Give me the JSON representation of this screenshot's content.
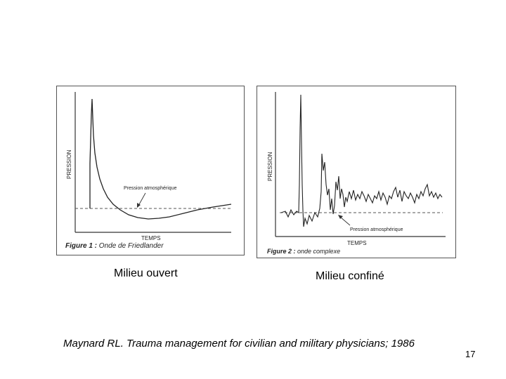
{
  "figures": [
    {
      "id": "fig1",
      "y_axis_label": "PRESSION",
      "x_axis_label": "TEMPS",
      "annotation": "Pression atmosphérique",
      "caption_prefix": "Figure 1 :",
      "caption_text": "Onde de Friedlander",
      "label_below": "Milieu ouvert"
    },
    {
      "id": "fig2",
      "y_axis_label": "PRESSION",
      "x_axis_label": "TEMPS",
      "annotation": "Pression atmosphérique",
      "caption_prefix": "Figure 2 :",
      "caption_text": "onde complexe",
      "label_below": "Milieu confiné"
    }
  ],
  "citation": "Maynard RL. Trauma management  for civilian and military physicians; 1986",
  "page_number": "17",
  "colors": {
    "curve": "#222222",
    "axis": "#333333",
    "dashed": "#555555"
  }
}
